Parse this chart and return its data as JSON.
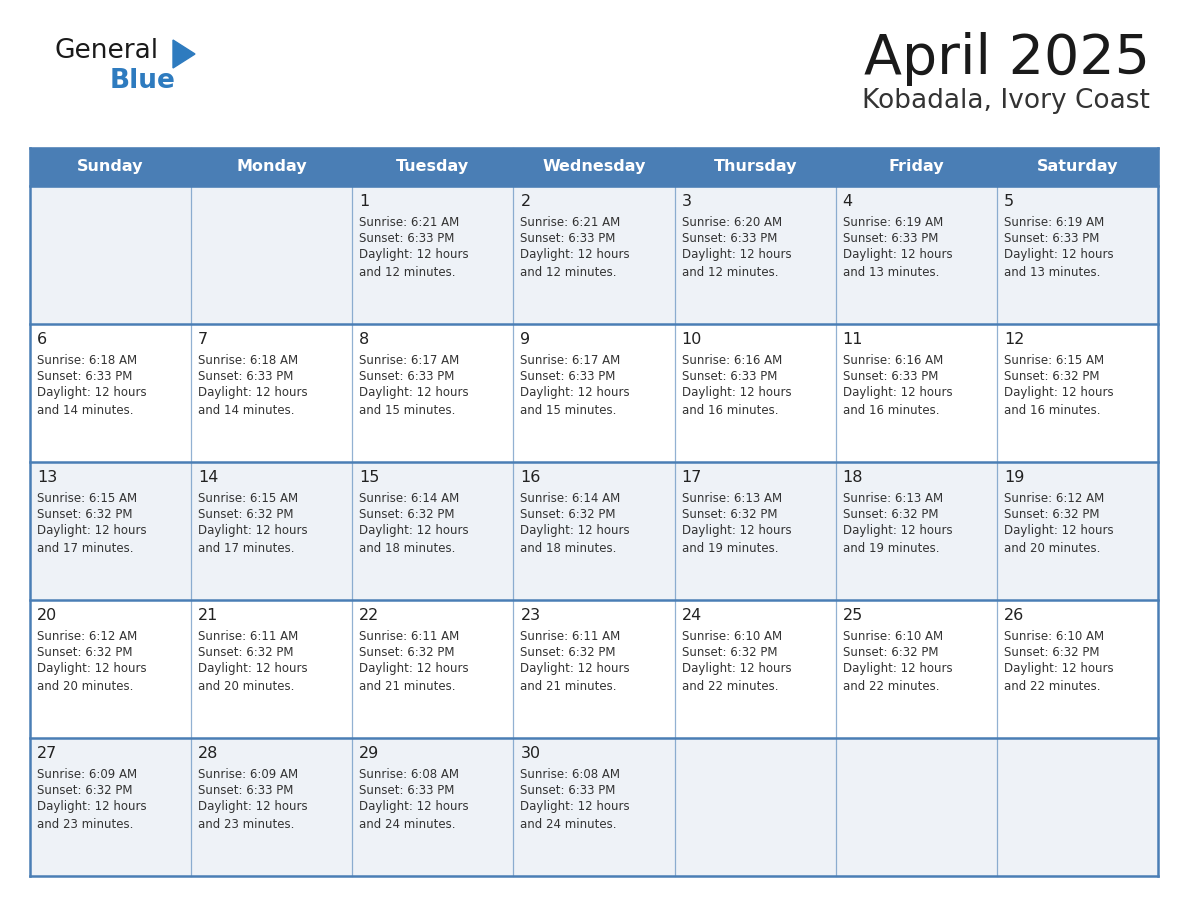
{
  "title": "April 2025",
  "subtitle": "Kobadala, Ivory Coast",
  "days_of_week": [
    "Sunday",
    "Monday",
    "Tuesday",
    "Wednesday",
    "Thursday",
    "Friday",
    "Saturday"
  ],
  "header_bg": "#4a7eb5",
  "header_text": "#ffffff",
  "row_bg_light": "#eef2f7",
  "row_bg_white": "#ffffff",
  "border_color": "#4a7eb5",
  "day_num_color": "#222222",
  "cell_text_color": "#333333",
  "title_color": "#1a1a1a",
  "subtitle_color": "#333333",
  "logo_black": "#1a1a1a",
  "logo_blue": "#2e7bbf",
  "weeks": [
    [
      {
        "day": "",
        "sunrise": "",
        "sunset": "",
        "daylight": ""
      },
      {
        "day": "",
        "sunrise": "",
        "sunset": "",
        "daylight": ""
      },
      {
        "day": "1",
        "sunrise": "Sunrise: 6:21 AM",
        "sunset": "Sunset: 6:33 PM",
        "daylight": "Daylight: 12 hours\nand 12 minutes."
      },
      {
        "day": "2",
        "sunrise": "Sunrise: 6:21 AM",
        "sunset": "Sunset: 6:33 PM",
        "daylight": "Daylight: 12 hours\nand 12 minutes."
      },
      {
        "day": "3",
        "sunrise": "Sunrise: 6:20 AM",
        "sunset": "Sunset: 6:33 PM",
        "daylight": "Daylight: 12 hours\nand 12 minutes."
      },
      {
        "day": "4",
        "sunrise": "Sunrise: 6:19 AM",
        "sunset": "Sunset: 6:33 PM",
        "daylight": "Daylight: 12 hours\nand 13 minutes."
      },
      {
        "day": "5",
        "sunrise": "Sunrise: 6:19 AM",
        "sunset": "Sunset: 6:33 PM",
        "daylight": "Daylight: 12 hours\nand 13 minutes."
      }
    ],
    [
      {
        "day": "6",
        "sunrise": "Sunrise: 6:18 AM",
        "sunset": "Sunset: 6:33 PM",
        "daylight": "Daylight: 12 hours\nand 14 minutes."
      },
      {
        "day": "7",
        "sunrise": "Sunrise: 6:18 AM",
        "sunset": "Sunset: 6:33 PM",
        "daylight": "Daylight: 12 hours\nand 14 minutes."
      },
      {
        "day": "8",
        "sunrise": "Sunrise: 6:17 AM",
        "sunset": "Sunset: 6:33 PM",
        "daylight": "Daylight: 12 hours\nand 15 minutes."
      },
      {
        "day": "9",
        "sunrise": "Sunrise: 6:17 AM",
        "sunset": "Sunset: 6:33 PM",
        "daylight": "Daylight: 12 hours\nand 15 minutes."
      },
      {
        "day": "10",
        "sunrise": "Sunrise: 6:16 AM",
        "sunset": "Sunset: 6:33 PM",
        "daylight": "Daylight: 12 hours\nand 16 minutes."
      },
      {
        "day": "11",
        "sunrise": "Sunrise: 6:16 AM",
        "sunset": "Sunset: 6:33 PM",
        "daylight": "Daylight: 12 hours\nand 16 minutes."
      },
      {
        "day": "12",
        "sunrise": "Sunrise: 6:15 AM",
        "sunset": "Sunset: 6:32 PM",
        "daylight": "Daylight: 12 hours\nand 16 minutes."
      }
    ],
    [
      {
        "day": "13",
        "sunrise": "Sunrise: 6:15 AM",
        "sunset": "Sunset: 6:32 PM",
        "daylight": "Daylight: 12 hours\nand 17 minutes."
      },
      {
        "day": "14",
        "sunrise": "Sunrise: 6:15 AM",
        "sunset": "Sunset: 6:32 PM",
        "daylight": "Daylight: 12 hours\nand 17 minutes."
      },
      {
        "day": "15",
        "sunrise": "Sunrise: 6:14 AM",
        "sunset": "Sunset: 6:32 PM",
        "daylight": "Daylight: 12 hours\nand 18 minutes."
      },
      {
        "day": "16",
        "sunrise": "Sunrise: 6:14 AM",
        "sunset": "Sunset: 6:32 PM",
        "daylight": "Daylight: 12 hours\nand 18 minutes."
      },
      {
        "day": "17",
        "sunrise": "Sunrise: 6:13 AM",
        "sunset": "Sunset: 6:32 PM",
        "daylight": "Daylight: 12 hours\nand 19 minutes."
      },
      {
        "day": "18",
        "sunrise": "Sunrise: 6:13 AM",
        "sunset": "Sunset: 6:32 PM",
        "daylight": "Daylight: 12 hours\nand 19 minutes."
      },
      {
        "day": "19",
        "sunrise": "Sunrise: 6:12 AM",
        "sunset": "Sunset: 6:32 PM",
        "daylight": "Daylight: 12 hours\nand 20 minutes."
      }
    ],
    [
      {
        "day": "20",
        "sunrise": "Sunrise: 6:12 AM",
        "sunset": "Sunset: 6:32 PM",
        "daylight": "Daylight: 12 hours\nand 20 minutes."
      },
      {
        "day": "21",
        "sunrise": "Sunrise: 6:11 AM",
        "sunset": "Sunset: 6:32 PM",
        "daylight": "Daylight: 12 hours\nand 20 minutes."
      },
      {
        "day": "22",
        "sunrise": "Sunrise: 6:11 AM",
        "sunset": "Sunset: 6:32 PM",
        "daylight": "Daylight: 12 hours\nand 21 minutes."
      },
      {
        "day": "23",
        "sunrise": "Sunrise: 6:11 AM",
        "sunset": "Sunset: 6:32 PM",
        "daylight": "Daylight: 12 hours\nand 21 minutes."
      },
      {
        "day": "24",
        "sunrise": "Sunrise: 6:10 AM",
        "sunset": "Sunset: 6:32 PM",
        "daylight": "Daylight: 12 hours\nand 22 minutes."
      },
      {
        "day": "25",
        "sunrise": "Sunrise: 6:10 AM",
        "sunset": "Sunset: 6:32 PM",
        "daylight": "Daylight: 12 hours\nand 22 minutes."
      },
      {
        "day": "26",
        "sunrise": "Sunrise: 6:10 AM",
        "sunset": "Sunset: 6:32 PM",
        "daylight": "Daylight: 12 hours\nand 22 minutes."
      }
    ],
    [
      {
        "day": "27",
        "sunrise": "Sunrise: 6:09 AM",
        "sunset": "Sunset: 6:32 PM",
        "daylight": "Daylight: 12 hours\nand 23 minutes."
      },
      {
        "day": "28",
        "sunrise": "Sunrise: 6:09 AM",
        "sunset": "Sunset: 6:33 PM",
        "daylight": "Daylight: 12 hours\nand 23 minutes."
      },
      {
        "day": "29",
        "sunrise": "Sunrise: 6:08 AM",
        "sunset": "Sunset: 6:33 PM",
        "daylight": "Daylight: 12 hours\nand 24 minutes."
      },
      {
        "day": "30",
        "sunrise": "Sunrise: 6:08 AM",
        "sunset": "Sunset: 6:33 PM",
        "daylight": "Daylight: 12 hours\nand 24 minutes."
      },
      {
        "day": "",
        "sunrise": "",
        "sunset": "",
        "daylight": ""
      },
      {
        "day": "",
        "sunrise": "",
        "sunset": "",
        "daylight": ""
      },
      {
        "day": "",
        "sunrise": "",
        "sunset": "",
        "daylight": ""
      }
    ]
  ]
}
